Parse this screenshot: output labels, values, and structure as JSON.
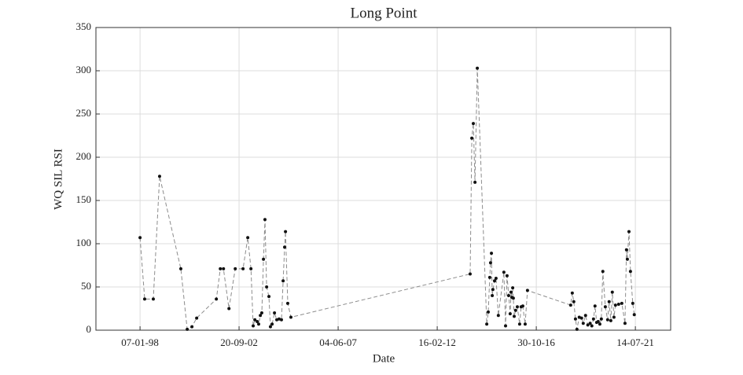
{
  "chart_data": {
    "type": "line",
    "title": "Long Point",
    "xlabel": "Date",
    "ylabel": "WQ SIL RSI",
    "x": [
      "07-01-98",
      "28-03-98",
      "25-08-98",
      "12-12-98",
      "15-12-99",
      "04-04-00",
      "25-06-00",
      "15-09-00",
      "22-08-01",
      "30-10-01",
      "24-12-01",
      "29-03-02",
      "16-07-02",
      "28-11-02",
      "18-02-03",
      "14-04-03",
      "23-05-03",
      "21-06-03",
      "31-07-03",
      "26-08-03",
      "24-09-03",
      "19-10-03",
      "17-11-03",
      "13-12-03",
      "11-01-04",
      "20-02-04",
      "17-03-04",
      "15-04-04",
      "26-05-04",
      "05-07-04",
      "14-08-04",
      "24-09-04",
      "23-10-04",
      "18-11-04",
      "03-12-04",
      "11-01-05",
      "07-03-05",
      "09-09-13",
      "08-10-13",
      "03-11-13",
      "02-12-13",
      "11-01-14",
      "24-06-14",
      "20-07-14",
      "15-08-14",
      "29-08-14",
      "13-09-14",
      "27-09-14",
      "08-10-14",
      "06-11-14",
      "02-12-14",
      "11-01-15",
      "17-04-15",
      "16-05-15",
      "11-06-15",
      "09-07-15",
      "04-08-15",
      "19-08-15",
      "02-09-15",
      "17-09-15",
      "28-09-15",
      "13-10-15",
      "07-11-15",
      "06-12-15",
      "15-01-16",
      "10-02-16",
      "10-03-16",
      "20-04-16",
      "30-05-16",
      "18-06-18",
      "16-07-18",
      "11-08-18",
      "09-09-18",
      "05-10-18",
      "14-11-18",
      "24-12-18",
      "22-01-19",
      "03-03-19",
      "12-04-19",
      "22-05-19",
      "20-06-19",
      "19-07-19",
      "14-08-19",
      "12-09-19",
      "08-10-19",
      "06-11-19",
      "02-12-19",
      "28-12-19",
      "09-02-20",
      "20-03-20",
      "15-04-20",
      "14-05-20",
      "09-06-20",
      "08-07-20",
      "03-08-20",
      "27-09-20",
      "21-11-20",
      "15-01-21",
      "10-02-21",
      "25-02-21",
      "25-03-21",
      "20-04-21",
      "30-05-21",
      "25-06-21"
    ],
    "values": [
      107,
      36,
      36,
      178,
      71,
      1,
      4,
      14,
      36,
      71,
      71,
      25,
      71,
      71,
      107,
      71,
      5,
      12,
      10,
      7,
      17,
      20,
      82,
      128,
      50,
      39,
      4,
      7,
      20,
      12,
      13,
      12,
      57,
      96,
      114,
      31,
      15,
      65,
      222,
      239,
      171,
      303,
      7,
      21,
      61,
      78,
      89,
      40,
      47,
      57,
      60,
      17,
      67,
      5,
      63,
      40,
      19,
      44,
      38,
      49,
      37,
      16,
      23,
      27,
      7,
      27,
      28,
      7,
      46,
      29,
      43,
      33,
      13,
      1,
      15,
      14,
      8,
      17,
      6,
      8,
      5,
      13,
      28,
      9,
      10,
      7,
      13,
      68,
      27,
      12,
      33,
      11,
      44,
      15,
      29,
      30,
      31,
      8,
      93,
      82,
      114,
      68,
      31,
      18
    ],
    "xlim": [
      "04-12-95",
      "18-03-23"
    ],
    "xticks": [
      "07-01-98",
      "20-09-02",
      "04-06-07",
      "16-02-12",
      "30-10-16",
      "14-07-21"
    ],
    "ylim": [
      0,
      350
    ],
    "yticks": [
      0,
      50,
      100,
      150,
      200,
      250,
      300,
      350
    ],
    "grid": true,
    "line_color": "#8c8c8c",
    "marker_color": "#111111"
  }
}
